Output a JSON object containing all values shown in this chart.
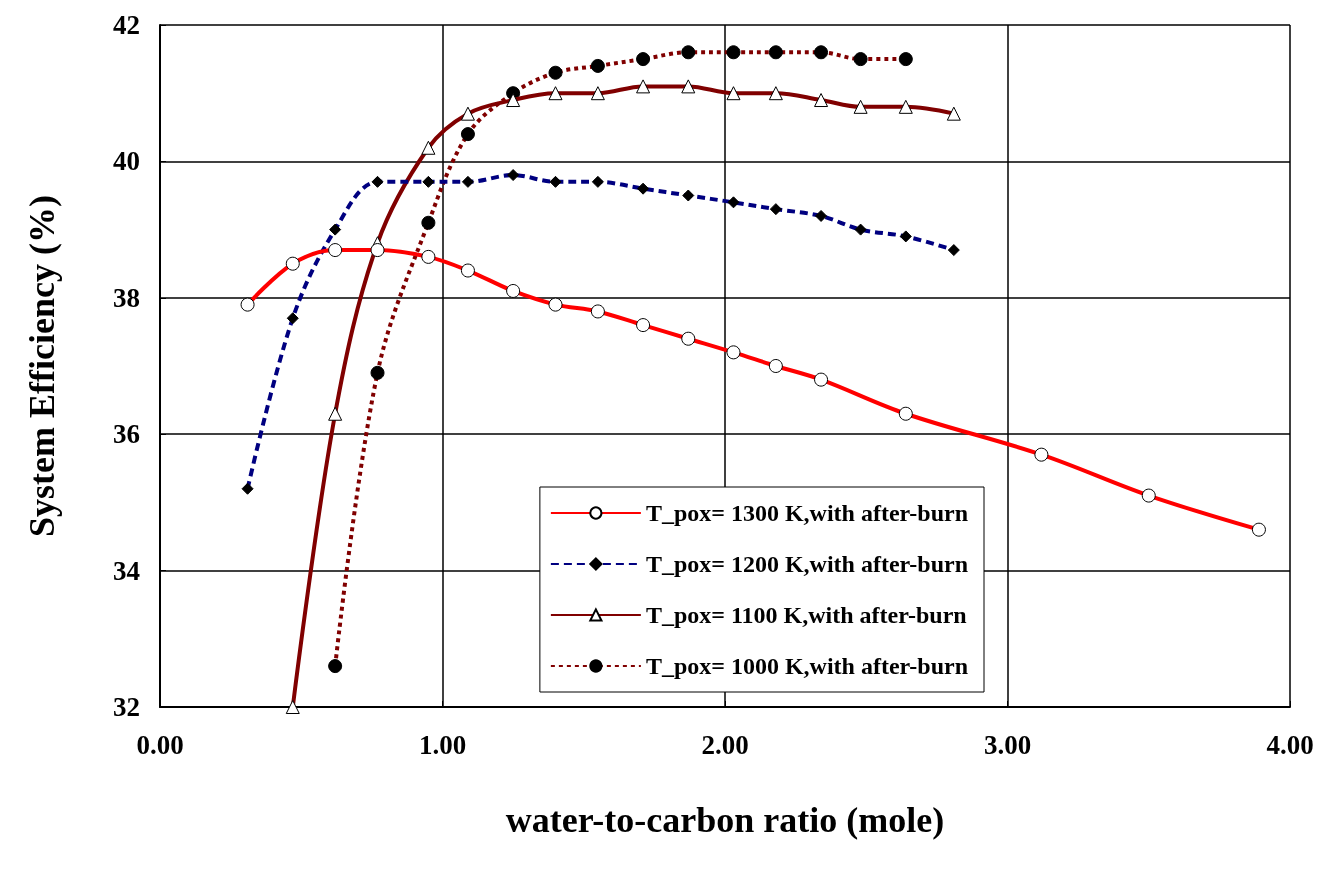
{
  "chart_data": {
    "type": "line",
    "xlabel": "water-to-carbon ratio (mole)",
    "ylabel": "System Efficiency (%)",
    "xlim": [
      0,
      4
    ],
    "xticks": [
      {
        "value": 0,
        "label": "0.00"
      },
      {
        "value": 1,
        "label": "1.00"
      },
      {
        "value": 2,
        "label": "2.00"
      },
      {
        "value": 3,
        "label": "3.00"
      },
      {
        "value": 4,
        "label": "4.00"
      }
    ],
    "ylim": [
      32,
      42
    ],
    "yticks": [
      32,
      34,
      36,
      38,
      40,
      42
    ],
    "grid": true,
    "legend": "bottom right",
    "series": [
      {
        "name": "T_pox= 1300 K,with after-burn",
        "color": "#ff0000",
        "marker": "circle",
        "line_style": "solid",
        "x": [
          0.31,
          0.47,
          0.62,
          0.77,
          0.95,
          1.09,
          1.25,
          1.4,
          1.55,
          1.71,
          1.87,
          2.03,
          2.18,
          2.34,
          2.64,
          3.12,
          3.5,
          3.89
        ],
        "values": [
          37.9,
          38.5,
          38.7,
          38.7,
          38.6,
          38.4,
          38.1,
          37.9,
          37.8,
          37.6,
          37.4,
          37.2,
          37.0,
          36.8,
          36.3,
          35.7,
          35.1,
          34.6
        ]
      },
      {
        "name": "T_pox= 1200 K,with after-burn",
        "color": "#000080",
        "marker": "diamond",
        "line_style": "dashed",
        "x": [
          0.31,
          0.47,
          0.62,
          0.77,
          0.95,
          1.09,
          1.25,
          1.4,
          1.55,
          1.71,
          1.87,
          2.03,
          2.18,
          2.34,
          2.48,
          2.64,
          2.81
        ],
        "values": [
          35.2,
          37.7,
          39.0,
          39.7,
          39.7,
          39.7,
          39.8,
          39.7,
          39.7,
          39.6,
          39.5,
          39.4,
          39.3,
          39.2,
          39.0,
          38.9,
          38.7
        ]
      },
      {
        "name": "T_pox= 1100 K,with after-burn",
        "color": "#800000",
        "marker": "triangle",
        "line_style": "solid",
        "x": [
          0.47,
          0.62,
          0.77,
          0.95,
          1.09,
          1.25,
          1.4,
          1.55,
          1.71,
          1.87,
          2.03,
          2.18,
          2.34,
          2.48,
          2.64,
          2.81
        ],
        "values": [
          32.0,
          36.3,
          38.8,
          40.2,
          40.7,
          40.9,
          41.0,
          41.0,
          41.1,
          41.1,
          41.0,
          41.0,
          40.9,
          40.8,
          40.8,
          40.7
        ]
      },
      {
        "name": "T_pox= 1000 K,with after-burn",
        "color": "#800000",
        "marker": "circle",
        "line_style": "dotted",
        "x": [
          0.62,
          0.77,
          0.95,
          1.09,
          1.25,
          1.4,
          1.55,
          1.71,
          1.87,
          2.03,
          2.18,
          2.34,
          2.48,
          2.64
        ],
        "values": [
          32.6,
          36.9,
          39.1,
          40.4,
          41.0,
          41.3,
          41.4,
          41.5,
          41.6,
          41.6,
          41.6,
          41.6,
          41.5,
          41.5
        ]
      }
    ]
  }
}
